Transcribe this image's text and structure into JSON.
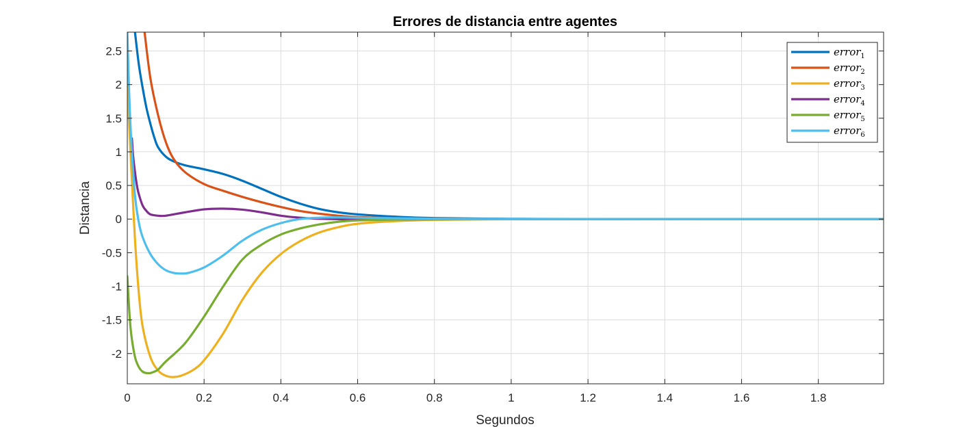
{
  "chart_data": {
    "type": "line",
    "title": "Errores de distancia entre agentes",
    "xlabel": "Segundos",
    "ylabel": "Distancia",
    "xlim": [
      0,
      1.97
    ],
    "ylim": [
      -2.45,
      2.78
    ],
    "xticks": [
      0,
      0.2,
      0.4,
      0.6,
      0.8,
      1,
      1.2,
      1.4,
      1.6,
      1.8
    ],
    "xtick_labels": [
      "0",
      "0.2",
      "0.4",
      "0.6",
      "0.8",
      "1",
      "1.2",
      "1.4",
      "1.6",
      "1.8"
    ],
    "yticks": [
      -2,
      -1.5,
      -1,
      -0.5,
      0,
      0.5,
      1,
      1.5,
      2,
      2.5
    ],
    "ytick_labels": [
      "-2",
      "-1.5",
      "-1",
      "-0.5",
      "0",
      "0.5",
      "1",
      "1.5",
      "2",
      "2.5"
    ],
    "grid": true,
    "legend_position": "top-right",
    "series": [
      {
        "name": "error",
        "subscript": "1",
        "color": "#0072BD",
        "x": [
          0.02,
          0.03,
          0.04,
          0.05,
          0.06,
          0.07,
          0.08,
          0.1,
          0.12,
          0.15,
          0.2,
          0.25,
          0.3,
          0.35,
          0.4,
          0.45,
          0.5,
          0.55,
          0.6,
          0.7,
          0.8,
          1.0,
          1.2,
          1.5,
          1.97
        ],
        "y": [
          2.78,
          2.3,
          1.95,
          1.65,
          1.42,
          1.22,
          1.07,
          0.93,
          0.86,
          0.8,
          0.74,
          0.67,
          0.57,
          0.45,
          0.33,
          0.23,
          0.15,
          0.1,
          0.07,
          0.035,
          0.015,
          0.004,
          0.001,
          0,
          0
        ]
      },
      {
        "name": "error",
        "subscript": "2",
        "color": "#D95319",
        "x": [
          0.045,
          0.06,
          0.08,
          0.1,
          0.12,
          0.15,
          0.2,
          0.25,
          0.3,
          0.35,
          0.4,
          0.45,
          0.5,
          0.55,
          0.6,
          0.7,
          0.8,
          1.0,
          1.2,
          1.5,
          1.97
        ],
        "y": [
          2.78,
          2.1,
          1.55,
          1.15,
          0.9,
          0.7,
          0.52,
          0.42,
          0.33,
          0.25,
          0.18,
          0.12,
          0.08,
          0.05,
          0.03,
          0.012,
          0.005,
          0.001,
          0,
          0,
          0
        ]
      },
      {
        "name": "error",
        "subscript": "3",
        "color": "#EDB120",
        "x": [
          0.0,
          0.005,
          0.01,
          0.02,
          0.03,
          0.04,
          0.06,
          0.08,
          0.1,
          0.12,
          0.14,
          0.17,
          0.2,
          0.25,
          0.3,
          0.35,
          0.4,
          0.45,
          0.5,
          0.55,
          0.6,
          0.7,
          0.8,
          1.0,
          1.2,
          1.5,
          1.97
        ],
        "y": [
          2.0,
          1.4,
          0.8,
          -0.3,
          -1.1,
          -1.6,
          -2.05,
          -2.25,
          -2.33,
          -2.35,
          -2.33,
          -2.25,
          -2.1,
          -1.7,
          -1.2,
          -0.8,
          -0.52,
          -0.33,
          -0.2,
          -0.12,
          -0.07,
          -0.03,
          -0.012,
          -0.002,
          0,
          0,
          0
        ]
      },
      {
        "name": "error",
        "subscript": "4",
        "color": "#7E2F8E",
        "x": [
          0.012,
          0.015,
          0.02,
          0.025,
          0.03,
          0.04,
          0.05,
          0.06,
          0.08,
          0.1,
          0.15,
          0.2,
          0.25,
          0.3,
          0.35,
          0.4,
          0.45,
          0.5,
          0.6,
          0.8,
          1.0,
          1.5,
          1.97
        ],
        "y": [
          1.2,
          0.95,
          0.7,
          0.5,
          0.37,
          0.2,
          0.12,
          0.07,
          0.05,
          0.05,
          0.1,
          0.145,
          0.155,
          0.14,
          0.1,
          0.05,
          0.02,
          0.005,
          -0.005,
          -0.002,
          0,
          0,
          0
        ]
      },
      {
        "name": "error",
        "subscript": "5",
        "color": "#77AC30",
        "x": [
          0.0,
          0.005,
          0.01,
          0.02,
          0.03,
          0.04,
          0.05,
          0.06,
          0.07,
          0.08,
          0.1,
          0.15,
          0.2,
          0.25,
          0.3,
          0.35,
          0.4,
          0.45,
          0.5,
          0.55,
          0.6,
          0.7,
          0.8,
          1.0,
          1.2,
          1.5,
          1.97
        ],
        "y": [
          -0.85,
          -1.35,
          -1.7,
          -2.05,
          -2.2,
          -2.27,
          -2.29,
          -2.29,
          -2.27,
          -2.24,
          -2.12,
          -1.85,
          -1.45,
          -1.0,
          -0.6,
          -0.38,
          -0.23,
          -0.14,
          -0.08,
          -0.04,
          -0.02,
          -0.008,
          -0.003,
          0,
          0,
          0,
          0
        ]
      },
      {
        "name": "error",
        "subscript": "6",
        "color": "#4DBEEE",
        "x": [
          0.0,
          0.005,
          0.01,
          0.02,
          0.03,
          0.04,
          0.06,
          0.08,
          0.1,
          0.12,
          0.14,
          0.16,
          0.2,
          0.25,
          0.3,
          0.35,
          0.4,
          0.45,
          0.5,
          0.55,
          0.6,
          0.8,
          1.0,
          1.5,
          1.97
        ],
        "y": [
          2.78,
          1.85,
          1.2,
          0.35,
          -0.05,
          -0.27,
          -0.52,
          -0.67,
          -0.76,
          -0.8,
          -0.81,
          -0.8,
          -0.72,
          -0.54,
          -0.32,
          -0.16,
          -0.06,
          0.0,
          0.02,
          0.025,
          0.02,
          0.005,
          0.001,
          0,
          0
        ]
      }
    ]
  }
}
